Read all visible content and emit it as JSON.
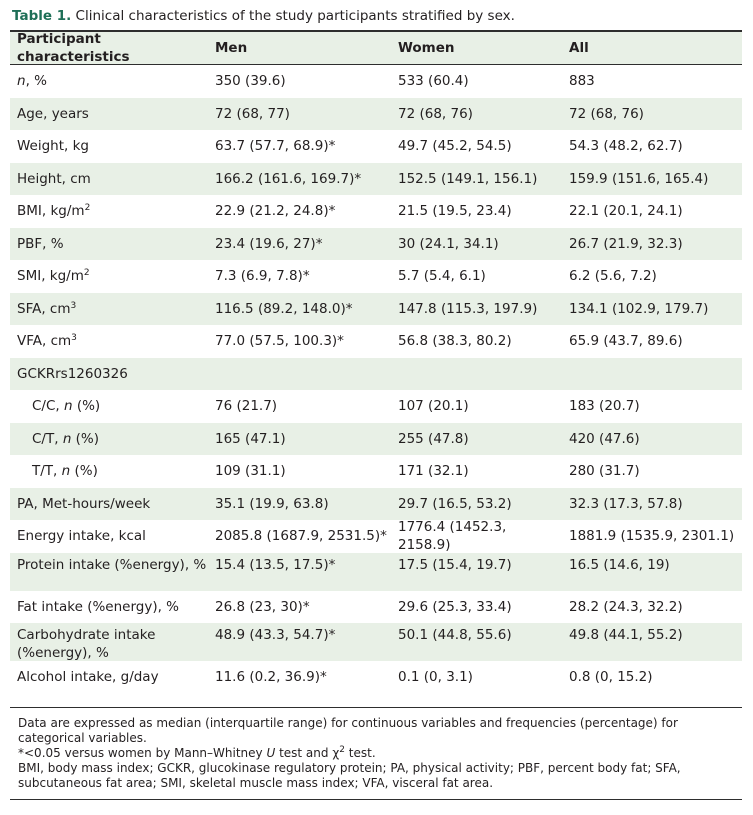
{
  "caption": {
    "label": "Table 1.",
    "text": "Clinical characteristics of the study participants stratified by sex."
  },
  "columns": [
    "Participant characteristics",
    "Men",
    "Women",
    "All"
  ],
  "rows": [
    {
      "label_italic": "n",
      "label_rest": ", %",
      "men": "350 (39.6)",
      "women": "533 (60.4)",
      "all": "883"
    },
    {
      "label": "Age, years",
      "men": "72 (68, 77)",
      "women": "72 (68, 76)",
      "all": "72 (68, 76)"
    },
    {
      "label": "Weight, kg",
      "men": "63.7 (57.7, 68.9)*",
      "women": "49.7 (45.2, 54.5)",
      "all": "54.3 (48.2, 62.7)"
    },
    {
      "label": "Height, cm",
      "men": "166.2 (161.6, 169.7)*",
      "women": "152.5 (149.1, 156.1)",
      "all": "159.9 (151.6, 165.4)"
    },
    {
      "label": "BMI, kg/m",
      "label_sup": "2",
      "men": "22.9 (21.2, 24.8)*",
      "women": "21.5 (19.5, 23.4)",
      "all": "22.1 (20.1, 24.1)"
    },
    {
      "label": "PBF, %",
      "men": "23.4 (19.6, 27)*",
      "women": "30 (24.1, 34.1)",
      "all": "26.7 (21.9, 32.3)"
    },
    {
      "label": "SMI, kg/m",
      "label_sup": "2",
      "men": "7.3 (6.9, 7.8)*",
      "women": "5.7 (5.4, 6.1)",
      "all": "6.2 (5.6, 7.2)"
    },
    {
      "label": "SFA, cm",
      "label_sup": "3",
      "men": "116.5 (89.2, 148.0)*",
      "women": "147.8 (115.3, 197.9)",
      "all": "134.1 (102.9, 179.7)"
    },
    {
      "label": "VFA, cm",
      "label_sup": "3",
      "men": "77.0 (57.5, 100.3)*",
      "women": "56.8 (38.3, 80.2)",
      "all": "65.9 (43.7, 89.6)"
    },
    {
      "label": "GCKRrs1260326",
      "men": "",
      "women": "",
      "all": ""
    },
    {
      "label": "C/C, ",
      "label_italic": "n",
      "label_rest": " (%)",
      "men": "76 (21.7)",
      "women": "107 (20.1)",
      "all": "183 (20.7)"
    },
    {
      "label": "C/T, ",
      "label_italic": "n",
      "label_rest": " (%)",
      "men": "165 (47.1)",
      "women": "255 (47.8)",
      "all": "420 (47.6)"
    },
    {
      "label": "T/T, ",
      "label_italic": "n",
      "label_rest": " (%)",
      "men": "109 (31.1)",
      "women": "171 (32.1)",
      "all": "280 (31.7)"
    },
    {
      "label": "PA, Met-hours/week",
      "men": "35.1 (19.9, 63.8)",
      "women": "29.7 (16.5, 53.2)",
      "all": "32.3 (17.3, 57.8)"
    },
    {
      "label": "Energy intake, kcal",
      "men": "2085.8 (1687.9, 2531.5)*",
      "women": "1776.4 (1452.3, 2158.9)",
      "all": "1881.9 (1535.9, 2301.1)"
    },
    {
      "label": "Protein intake (%energy), %",
      "men": "15.4 (13.5, 17.5)*",
      "women": "17.5 (15.4, 19.7)",
      "all": "16.5 (14.6, 19)"
    },
    {
      "label": "Fat intake (%energy), %",
      "men": "26.8 (23, 30)*",
      "women": "29.6 (25.3, 33.4)",
      "all": "28.2 (24.3, 32.2)"
    },
    {
      "label": "Carbohydrate intake (%energy), %",
      "men": "48.9 (43.3, 54.7)*",
      "women": "50.1 (44.8, 55.6)",
      "all": "49.8 (44.1, 55.2)"
    },
    {
      "label": "Alcohol intake, g/day",
      "men": "11.6 (0.2, 36.9)*",
      "women": "0.1 (0, 3.1)",
      "all": "0.8 (0, 15.2)"
    }
  ],
  "notes": {
    "line1": "Data are expressed as median (interquartile range) for continuous variables and frequencies (percentage) for categorical variables.",
    "line2_a": "*<0.05 versus women by Mann–Whitney ",
    "line2_u": "U",
    "line2_b": " test and χ",
    "line2_sup": "2",
    "line2_c": " test.",
    "line3": "BMI, body mass index; GCKR, glucokinase regulatory protein; PA, physical activity; PBF, percent body fat; SFA, subcutaneous fat area; SMI, skeletal muscle mass index; VFA, visceral fat area."
  }
}
